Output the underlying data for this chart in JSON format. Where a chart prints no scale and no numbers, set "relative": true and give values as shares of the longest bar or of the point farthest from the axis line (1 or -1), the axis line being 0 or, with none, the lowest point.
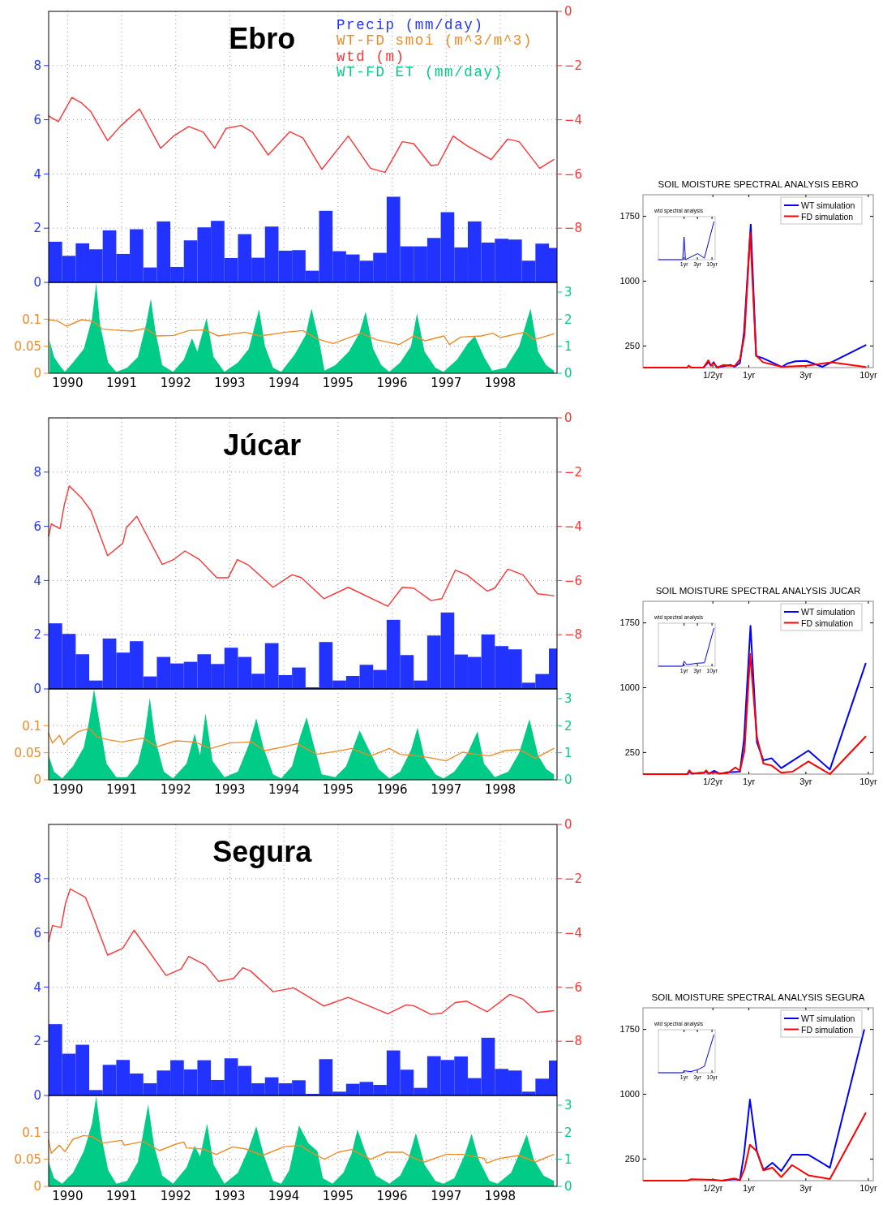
{
  "chart_data": [
    {
      "type": "bar",
      "title": "Ebro",
      "x": [
        1989.775,
        1990.025,
        1990.275,
        1990.525,
        1990.775,
        1991.025,
        1991.275,
        1991.525,
        1991.775,
        1992.025,
        1992.275,
        1992.525,
        1992.775,
        1993.025,
        1993.275,
        1993.525,
        1993.775,
        1994.025,
        1994.275,
        1994.525,
        1994.775,
        1995.025,
        1995.275,
        1995.525,
        1995.775,
        1996.025,
        1996.275,
        1996.525,
        1996.775,
        1997.025,
        1997.275,
        1997.525,
        1997.775,
        1998.025,
        1998.275,
        1998.525,
        1998.775,
        1999.025
      ],
      "series": [
        {
          "name": "Precip (mm/day)",
          "type": "bar",
          "color": "#2233ff",
          "values": [
            1.5,
            0.98,
            1.44,
            1.22,
            1.92,
            1.05,
            1.96,
            0.55,
            2.25,
            0.57,
            1.55,
            2.03,
            2.27,
            0.9,
            1.78,
            0.91,
            2.06,
            1.17,
            1.19,
            0.43,
            2.64,
            1.15,
            1.03,
            0.8,
            1.09,
            3.16,
            1.33,
            1.33,
            1.64,
            2.59,
            1.29,
            2.25,
            1.47,
            1.61,
            1.58,
            0.8,
            1.43,
            1.27
          ]
        },
        {
          "name": "wtd (m)",
          "type": "line",
          "axis": "y2",
          "color": "#ff3333",
          "x": [
            1989.65,
            1989.83,
            1990.08,
            1990.26,
            1990.43,
            1990.74,
            1990.99,
            1991.33,
            1991.72,
            1991.96,
            1992.24,
            1992.51,
            1992.72,
            1992.93,
            1993.21,
            1993.42,
            1993.71,
            1994.11,
            1994.35,
            1994.7,
            1995.19,
            1995.6,
            1995.87,
            1996.19,
            1996.4,
            1996.72,
            1996.85,
            1997.13,
            1997.38,
            1997.83,
            1998.14,
            1998.35,
            1998.73,
            1998.99
          ],
          "values": [
            -3.86,
            -4.07,
            -3.18,
            -3.38,
            -3.7,
            -4.77,
            -4.21,
            -3.6,
            -5.05,
            -4.6,
            -4.25,
            -4.46,
            -5.05,
            -4.32,
            -4.21,
            -4.46,
            -5.3,
            -4.44,
            -4.67,
            -5.83,
            -4.6,
            -5.79,
            -5.94,
            -4.81,
            -4.88,
            -5.69,
            -5.66,
            -4.6,
            -4.95,
            -5.47,
            -4.71,
            -4.81,
            -5.79,
            -5.47
          ]
        }
      ],
      "xlim": [
        1989.65,
        1999.05
      ],
      "xticks": [
        1990,
        1991,
        1992,
        1993,
        1994,
        1995,
        1996,
        1997,
        1998
      ],
      "ylim": [
        0,
        10
      ],
      "yticks": [
        0,
        2,
        4,
        6,
        8
      ],
      "y2lim": [
        -10,
        0
      ],
      "y2ticks": [
        0,
        -2,
        -4,
        -6,
        -8
      ],
      "grid": true,
      "legend": "top right",
      "tick_labels": "y"
    },
    {
      "type": "line",
      "series": [
        {
          "name": "WT-FD smoi (m^3/m^3)",
          "type": "line",
          "color": "#f08a24",
          "x": [
            1989.65,
            1989.81,
            1989.98,
            1990.26,
            1990.47,
            1990.64,
            1990.85,
            1991.19,
            1991.44,
            1991.65,
            1991.96,
            1992.24,
            1992.55,
            1992.79,
            1993.28,
            1993.56,
            1994.04,
            1994.35,
            1994.6,
            1994.91,
            1995.43,
            1995.71,
            1996.13,
            1996.4,
            1996.61,
            1996.96,
            1997.06,
            1997.27,
            1997.65,
            1997.86,
            1998.0,
            1998.45,
            1998.63,
            1998.99
          ],
          "values": [
            0.099,
            0.097,
            0.087,
            0.099,
            0.096,
            0.082,
            0.08,
            0.078,
            0.083,
            0.069,
            0.07,
            0.079,
            0.08,
            0.069,
            0.076,
            0.069,
            0.076,
            0.079,
            0.064,
            0.055,
            0.074,
            0.062,
            0.053,
            0.069,
            0.06,
            0.069,
            0.053,
            0.067,
            0.069,
            0.074,
            0.066,
            0.076,
            0.062,
            0.073
          ]
        },
        {
          "name": "WT-FD ET (mm/day)",
          "type": "area",
          "axis": "y2",
          "color": "#00cc88",
          "x": [
            1989.67,
            1989.75,
            1989.85,
            1989.95,
            1990.1,
            1990.3,
            1990.45,
            1990.53,
            1990.6,
            1990.75,
            1990.9,
            1991.1,
            1991.3,
            1991.45,
            1991.54,
            1991.62,
            1991.75,
            1991.95,
            1992.15,
            1992.3,
            1992.4,
            1992.57,
            1992.7,
            1992.9,
            1993.15,
            1993.35,
            1993.54,
            1993.65,
            1993.8,
            1993.95,
            1994.2,
            1994.4,
            1994.51,
            1994.65,
            1994.75,
            1994.95,
            1995.2,
            1995.4,
            1995.51,
            1995.65,
            1995.8,
            1995.95,
            1996.15,
            1996.35,
            1996.46,
            1996.6,
            1996.8,
            1996.95,
            1997.2,
            1997.4,
            1997.53,
            1997.7,
            1997.85,
            1998.1,
            1998.35,
            1998.56,
            1998.7,
            1998.85,
            1998.99
          ],
          "values": [
            1.2,
            0.6,
            0.3,
            0.05,
            0.4,
            0.9,
            2.0,
            3.34,
            1.8,
            0.4,
            0.05,
            0.2,
            0.6,
            1.8,
            2.75,
            1.6,
            0.3,
            0.05,
            0.5,
            1.3,
            0.8,
            2.04,
            0.6,
            0.05,
            0.4,
            0.9,
            2.37,
            1.0,
            0.2,
            0.05,
            0.7,
            1.4,
            2.39,
            1.2,
            0.1,
            0.3,
            0.8,
            1.5,
            2.28,
            0.9,
            0.3,
            0.05,
            0.4,
            1.0,
            2.21,
            0.8,
            0.2,
            0.05,
            0.5,
            1.1,
            1.37,
            0.6,
            0.1,
            0.2,
            1.0,
            2.39,
            0.8,
            0.3,
            0.1
          ]
        }
      ],
      "xlim": [
        1989.65,
        1999.05
      ],
      "xticks": [
        1990,
        1991,
        1992,
        1993,
        1994,
        1995,
        1996,
        1997,
        1998
      ],
      "ylim": [
        0,
        0.168
      ],
      "yticks": [
        0,
        0.05,
        0.1
      ],
      "y2lim": [
        0,
        3.36
      ],
      "y2ticks": [
        0,
        1,
        2,
        3
      ],
      "grid": true
    },
    {
      "type": "line",
      "title": "SOIL MOISTURE SPECTRAL ANALYSIS EBRO",
      "log": "x",
      "series": [
        {
          "name": "WT simulation",
          "color": "#0000ff",
          "x": [
            0.329,
            0.417,
            0.458,
            0.482,
            0.508,
            0.54,
            0.616,
            0.701,
            0.759,
            0.842,
            0.911,
            1.037,
            1.151,
            1.311,
            1.887,
            2.097,
            2.45,
            3.02,
            4.12,
            9.49
          ],
          "values": [
            0,
            0,
            62,
            22,
            62,
            0,
            16,
            31,
            9,
            53,
            406,
            1656,
            134,
            109,
            9,
            47,
            72,
            78,
            9,
            259
          ]
        },
        {
          "name": "FD simulation",
          "color": "#ff0000",
          "x": [
            0.132,
            0.305,
            0.313,
            0.329,
            0.417,
            0.458,
            0.482,
            0.508,
            0.54,
            0.616,
            0.701,
            0.759,
            0.842,
            0.92,
            1.026,
            1.151,
            1.311,
            1.887,
            3.02,
            4.95,
            9.49
          ],
          "values": [
            0,
            0,
            22,
            0,
            0,
            84,
            22,
            53,
            0,
            31,
            22,
            16,
            94,
            375,
            1562,
            141,
            62,
            9,
            22,
            62,
            6
          ]
        }
      ],
      "xlim": [
        0.13,
        11
      ],
      "xticks": [
        {
          "value": 0.5,
          "label": "1/2yr"
        },
        {
          "value": 1,
          "label": "1yr"
        },
        {
          "value": 3,
          "label": "3yr"
        },
        {
          "value": 10,
          "label": "10yr"
        }
      ],
      "ylim": [
        0,
        2000
      ],
      "yticks": [
        250,
        1000,
        1750
      ],
      "legend": "top right"
    },
    {
      "type": "line",
      "title": "wtd spectral analysis",
      "log": "x",
      "relative": true,
      "series": [
        {
          "color": "#0000ff",
          "x": [
            0.12,
            0.89,
            1,
            1.12,
            3.06,
            5.34,
            11.7
          ],
          "values": [
            0,
            0,
            0.6,
            0,
            0.16,
            0.04,
            1
          ]
        }
      ],
      "xlim": [
        0.12,
        13
      ],
      "xticks": [
        {
          "value": 1,
          "label": "1yr"
        },
        {
          "value": 3,
          "label": "3yr"
        },
        {
          "value": 10,
          "label": "10yr"
        }
      ],
      "tick_labels": "x"
    },
    {
      "type": "bar",
      "title": "Júcar",
      "x": [
        1989.775,
        1990.025,
        1990.275,
        1990.525,
        1990.775,
        1991.025,
        1991.275,
        1991.525,
        1991.775,
        1992.025,
        1992.275,
        1992.525,
        1992.775,
        1993.025,
        1993.275,
        1993.525,
        1993.775,
        1994.025,
        1994.275,
        1994.525,
        1994.775,
        1995.025,
        1995.275,
        1995.525,
        1995.775,
        1996.025,
        1996.275,
        1996.525,
        1996.775,
        1997.025,
        1997.275,
        1997.525,
        1997.775,
        1998.025,
        1998.275,
        1998.525,
        1998.775,
        1999.025
      ],
      "series": [
        {
          "type": "bar",
          "color": "#2233ff",
          "values": [
            2.42,
            2.03,
            1.28,
            0.31,
            1.86,
            1.34,
            1.76,
            0.46,
            1.18,
            0.94,
            1.0,
            1.28,
            0.92,
            1.52,
            1.18,
            0.56,
            1.69,
            0.51,
            0.79,
            0.06,
            1.73,
            0.31,
            0.48,
            0.89,
            0.7,
            2.55,
            1.25,
            0.31,
            1.97,
            2.82,
            1.27,
            1.18,
            2.01,
            1.58,
            1.46,
            0.23,
            0.55,
            1.49
          ]
        },
        {
          "type": "line",
          "axis": "y2",
          "color": "#ff3333",
          "x": [
            1989.65,
            1989.7,
            1989.86,
            1989.94,
            1990.03,
            1990.26,
            1990.43,
            1990.74,
            1991.02,
            1991.09,
            1991.28,
            1991.75,
            1991.96,
            1992.17,
            1992.44,
            1992.76,
            1992.97,
            1993.14,
            1993.35,
            1993.8,
            1994.15,
            1994.32,
            1994.74,
            1995.19,
            1995.92,
            1996.19,
            1996.4,
            1996.72,
            1996.92,
            1997.17,
            1997.38,
            1997.76,
            1997.9,
            1998.14,
            1998.42,
            1998.69,
            1998.99
          ],
          "values": [
            -4.35,
            -3.91,
            -4.09,
            -3.21,
            -2.51,
            -2.96,
            -3.42,
            -5.08,
            -4.63,
            -4.04,
            -3.63,
            -5.41,
            -5.23,
            -4.91,
            -5.23,
            -5.9,
            -5.9,
            -5.23,
            -5.44,
            -6.25,
            -5.79,
            -5.89,
            -6.67,
            -6.25,
            -6.95,
            -6.25,
            -6.28,
            -6.74,
            -6.67,
            -5.62,
            -5.79,
            -6.39,
            -6.28,
            -5.58,
            -5.79,
            -6.49,
            -6.56
          ]
        }
      ],
      "xlim": [
        1989.65,
        1999.05
      ],
      "xticks": [
        1990,
        1991,
        1992,
        1993,
        1994,
        1995,
        1996,
        1997,
        1998
      ],
      "ylim": [
        0,
        10
      ],
      "yticks": [
        0,
        2,
        4,
        6,
        8
      ],
      "y2lim": [
        -10,
        0
      ],
      "y2ticks": [
        0,
        -2,
        -4,
        -6,
        -8
      ],
      "grid": true,
      "tick_labels": "y"
    },
    {
      "type": "line",
      "series": [
        {
          "type": "line",
          "color": "#f08a24",
          "x": [
            1989.65,
            1989.72,
            1989.85,
            1989.93,
            1990.0,
            1990.2,
            1990.4,
            1990.55,
            1990.75,
            1991.0,
            1991.4,
            1991.65,
            1992.0,
            1992.35,
            1992.65,
            1993.0,
            1993.4,
            1993.65,
            1994.0,
            1994.25,
            1994.6,
            1995.0,
            1995.25,
            1995.6,
            1995.95,
            1996.15,
            1996.5,
            1996.75,
            1997.0,
            1997.3,
            1997.55,
            1997.8,
            1998.1,
            1998.35,
            1998.65,
            1998.99
          ],
          "values": [
            0.086,
            0.068,
            0.082,
            0.065,
            0.074,
            0.089,
            0.095,
            0.079,
            0.074,
            0.07,
            0.077,
            0.061,
            0.072,
            0.07,
            0.058,
            0.068,
            0.07,
            0.054,
            0.061,
            0.067,
            0.047,
            0.053,
            0.058,
            0.044,
            0.058,
            0.047,
            0.044,
            0.04,
            0.035,
            0.051,
            0.047,
            0.044,
            0.054,
            0.056,
            0.04,
            0.058
          ]
        },
        {
          "type": "area",
          "axis": "y2",
          "color": "#00cc88",
          "x": [
            1989.65,
            1989.75,
            1989.9,
            1990.1,
            1990.3,
            1990.4,
            1990.49,
            1990.6,
            1990.72,
            1990.9,
            1991.1,
            1991.3,
            1991.42,
            1991.52,
            1991.62,
            1991.78,
            1991.95,
            1992.2,
            1992.35,
            1992.45,
            1992.55,
            1992.68,
            1992.9,
            1993.15,
            1993.35,
            1993.49,
            1993.62,
            1993.8,
            1993.95,
            1994.15,
            1994.3,
            1994.42,
            1994.55,
            1994.7,
            1994.95,
            1995.15,
            1995.3,
            1995.4,
            1995.55,
            1995.75,
            1995.95,
            1996.15,
            1996.35,
            1996.47,
            1996.6,
            1996.8,
            1996.95,
            1997.15,
            1997.4,
            1997.58,
            1997.7,
            1997.9,
            1998.15,
            1998.35,
            1998.54,
            1998.7,
            1998.85,
            1998.99
          ],
          "values": [
            0.9,
            0.3,
            0.05,
            0.5,
            1.2,
            2.2,
            3.35,
            2.0,
            0.6,
            0.1,
            0.1,
            0.6,
            1.6,
            3.03,
            1.5,
            0.3,
            0.05,
            0.6,
            1.7,
            0.9,
            2.46,
            0.7,
            0.1,
            0.3,
            1.3,
            2.27,
            1.2,
            0.2,
            0.05,
            0.5,
            1.6,
            2.31,
            1.3,
            0.2,
            0.1,
            0.5,
            1.3,
            1.82,
            1.2,
            0.4,
            0.05,
            0.3,
            1.1,
            1.93,
            0.8,
            0.2,
            0.05,
            0.3,
            1.0,
            1.79,
            0.6,
            0.1,
            0.3,
            1.0,
            2.24,
            0.9,
            0.4,
            0.2
          ]
        }
      ],
      "xlim": [
        1989.65,
        1999.05
      ],
      "xticks": [
        1990,
        1991,
        1992,
        1993,
        1994,
        1995,
        1996,
        1997,
        1998
      ],
      "ylim": [
        0,
        0.168
      ],
      "yticks": [
        0,
        0.05,
        0.1
      ],
      "y2lim": [
        0,
        3.36
      ],
      "y2ticks": [
        0,
        1,
        2,
        3
      ],
      "grid": true
    },
    {
      "type": "line",
      "title": "SOIL MOISTURE SPECTRAL ANALYSIS JUCAR",
      "log": "x",
      "series": [
        {
          "name": "WT simulation",
          "color": "#0000ff",
          "x": [
            0.132,
            0.305,
            0.318,
            0.335,
            0.421,
            0.439,
            0.462,
            0.513,
            0.569,
            0.666,
            0.842,
            0.911,
            1.032,
            1.169,
            1.325,
            1.549,
            1.867,
            2.07,
            3.15,
            4.77,
            9.49
          ],
          "values": [
            0,
            0,
            28,
            6,
            16,
            28,
            6,
            38,
            6,
            22,
            28,
            397,
            1716,
            366,
            159,
            184,
            69,
            109,
            272,
            53,
            1278
          ]
        },
        {
          "name": "FD simulation",
          "color": "#ff0000",
          "x": [
            0.132,
            0.305,
            0.318,
            0.335,
            0.421,
            0.439,
            0.462,
            0.513,
            0.569,
            0.666,
            0.771,
            0.842,
            0.92,
            1.026,
            1.169,
            1.325,
            1.549,
            1.867,
            2.32,
            3.15,
            4.77,
            9.49
          ],
          "values": [
            0,
            0,
            44,
            6,
            16,
            44,
            6,
            22,
            6,
            12,
            78,
            38,
            272,
            1391,
            422,
            122,
            100,
            16,
            28,
            147,
            0,
            434
          ]
        }
      ],
      "xlim": [
        0.13,
        11
      ],
      "xticks": [
        {
          "value": 0.5,
          "label": "1/2yr"
        },
        {
          "value": 1,
          "label": "1yr"
        },
        {
          "value": 3,
          "label": "3yr"
        },
        {
          "value": 10,
          "label": "10yr"
        }
      ],
      "ylim": [
        0,
        2000
      ],
      "yticks": [
        250,
        1000,
        1750
      ],
      "legend": "top right"
    },
    {
      "type": "line",
      "title": "wtd spectral analysis",
      "log": "x",
      "relative": true,
      "series": [
        {
          "color": "#0000ff",
          "x": [
            0.12,
            0.89,
            1,
            1.25,
            3.06,
            5.34,
            11.7
          ],
          "values": [
            0,
            0,
            0.13,
            0.04,
            0.08,
            0.09,
            1
          ]
        }
      ],
      "xlim": [
        0.12,
        13
      ],
      "xticks": [
        {
          "value": 1,
          "label": "1yr"
        },
        {
          "value": 3,
          "label": "3yr"
        },
        {
          "value": 10,
          "label": "10yr"
        }
      ],
      "tick_labels": "x"
    },
    {
      "type": "bar",
      "title": "Segura",
      "x": [
        1989.775,
        1990.025,
        1990.275,
        1990.525,
        1990.775,
        1991.025,
        1991.275,
        1991.525,
        1991.775,
        1992.025,
        1992.275,
        1992.525,
        1992.775,
        1993.025,
        1993.275,
        1993.525,
        1993.775,
        1994.025,
        1994.275,
        1994.525,
        1994.775,
        1995.025,
        1995.275,
        1995.525,
        1995.775,
        1996.025,
        1996.275,
        1996.525,
        1996.775,
        1997.025,
        1997.275,
        1997.525,
        1997.775,
        1998.025,
        1998.275,
        1998.525,
        1998.775,
        1999.025
      ],
      "series": [
        {
          "type": "bar",
          "color": "#2233ff",
          "values": [
            2.63,
            1.54,
            1.87,
            0.2,
            1.13,
            1.31,
            0.81,
            0.45,
            0.92,
            1.3,
            0.96,
            1.3,
            0.57,
            1.37,
            1.09,
            0.45,
            0.67,
            0.45,
            0.56,
            0.06,
            1.34,
            0.14,
            0.43,
            0.5,
            0.39,
            1.66,
            0.95,
            0.28,
            1.45,
            1.31,
            1.44,
            0.64,
            2.13,
            0.98,
            0.92,
            0.14,
            0.62,
            1.29
          ]
        },
        {
          "type": "line",
          "axis": "y2",
          "color": "#ff3333",
          "x": [
            1989.65,
            1989.72,
            1989.88,
            1989.96,
            1990.05,
            1990.33,
            1990.43,
            1990.74,
            1991.02,
            1991.23,
            1991.82,
            1992.1,
            1992.24,
            1992.55,
            1992.79,
            1993.07,
            1993.24,
            1993.38,
            1993.8,
            1994.18,
            1994.74,
            1995.19,
            1995.92,
            1996.26,
            1996.4,
            1996.72,
            1996.92,
            1997.17,
            1997.38,
            1997.76,
            1998.18,
            1998.42,
            1998.69,
            1998.99
          ],
          "values": [
            -4.32,
            -3.73,
            -3.8,
            -2.92,
            -2.38,
            -2.69,
            -3.18,
            -4.82,
            -4.57,
            -3.9,
            -5.57,
            -5.33,
            -4.87,
            -5.19,
            -5.79,
            -5.68,
            -5.29,
            -5.4,
            -6.17,
            -6.03,
            -6.7,
            -6.38,
            -6.99,
            -6.66,
            -6.69,
            -7.01,
            -6.96,
            -6.57,
            -6.52,
            -6.91,
            -6.27,
            -6.45,
            -6.94,
            -6.87
          ]
        }
      ],
      "xlim": [
        1989.65,
        1999.05
      ],
      "xticks": [
        1990,
        1991,
        1992,
        1993,
        1994,
        1995,
        1996,
        1997,
        1998
      ],
      "ylim": [
        0,
        10
      ],
      "yticks": [
        0,
        2,
        4,
        6,
        8
      ],
      "y2lim": [
        -10,
        0
      ],
      "y2ticks": [
        0,
        -2,
        -4,
        -6,
        -8
      ],
      "grid": true,
      "tick_labels": "y"
    },
    {
      "type": "line",
      "series": [
        {
          "type": "line",
          "color": "#f08a24",
          "x": [
            1989.65,
            1989.7,
            1989.85,
            1989.95,
            1990.1,
            1990.3,
            1990.45,
            1990.65,
            1991.0,
            1991.05,
            1991.4,
            1991.7,
            1992.0,
            1992.15,
            1992.2,
            1992.5,
            1992.75,
            1993.05,
            1993.3,
            1993.6,
            1994.0,
            1994.3,
            1994.5,
            1994.75,
            1995.0,
            1995.25,
            1995.6,
            1995.9,
            1996.2,
            1996.4,
            1996.6,
            1997.0,
            1997.3,
            1997.7,
            1997.75,
            1998.0,
            1998.35,
            1998.65,
            1998.99
          ],
          "values": [
            0.085,
            0.061,
            0.076,
            0.064,
            0.087,
            0.094,
            0.092,
            0.08,
            0.085,
            0.076,
            0.083,
            0.066,
            0.078,
            0.082,
            0.071,
            0.069,
            0.059,
            0.073,
            0.069,
            0.057,
            0.073,
            0.076,
            0.063,
            0.05,
            0.063,
            0.068,
            0.05,
            0.063,
            0.063,
            0.052,
            0.045,
            0.059,
            0.059,
            0.052,
            0.043,
            0.052,
            0.057,
            0.045,
            0.059
          ]
        },
        {
          "type": "area",
          "axis": "y2",
          "color": "#00cc88",
          "x": [
            1989.65,
            1989.75,
            1989.9,
            1990.1,
            1990.3,
            1990.45,
            1990.53,
            1990.62,
            1990.75,
            1990.9,
            1991.1,
            1991.3,
            1991.4,
            1991.49,
            1991.6,
            1991.75,
            1991.95,
            1992.2,
            1992.35,
            1992.45,
            1992.58,
            1992.7,
            1992.9,
            1993.15,
            1993.35,
            1993.49,
            1993.62,
            1993.8,
            1993.95,
            1994.1,
            1994.28,
            1994.45,
            1994.62,
            1994.72,
            1994.9,
            1995.1,
            1995.25,
            1995.36,
            1995.5,
            1995.7,
            1995.95,
            1996.15,
            1996.3,
            1996.44,
            1996.6,
            1996.8,
            1996.95,
            1997.15,
            1997.35,
            1997.47,
            1997.6,
            1997.8,
            1997.95,
            1998.2,
            1998.35,
            1998.49,
            1998.62,
            1998.8,
            1998.99
          ],
          "values": [
            0.9,
            0.3,
            0.1,
            0.5,
            1.3,
            2.3,
            3.33,
            1.9,
            0.6,
            0.1,
            0.2,
            0.9,
            2.0,
            3.03,
            1.5,
            0.4,
            0.1,
            0.7,
            1.5,
            1.1,
            2.32,
            0.8,
            0.1,
            0.5,
            1.4,
            2.22,
            1.2,
            0.2,
            0.1,
            0.6,
            2.25,
            1.6,
            1.3,
            0.3,
            0.1,
            0.5,
            1.2,
            2.11,
            1.3,
            0.4,
            0.1,
            0.4,
            1.0,
            1.97,
            0.8,
            0.2,
            0.1,
            0.3,
            1.2,
            1.94,
            1.0,
            0.2,
            0.1,
            0.5,
            1.2,
            1.92,
            1.0,
            0.4,
            0.2
          ]
        }
      ],
      "xlim": [
        1989.65,
        1999.05
      ],
      "xticks": [
        1990,
        1991,
        1992,
        1993,
        1994,
        1995,
        1996,
        1997,
        1998
      ],
      "ylim": [
        0,
        0.168
      ],
      "yticks": [
        0,
        0.05,
        0.1
      ],
      "y2lim": [
        0,
        3.36
      ],
      "y2ticks": [
        0,
        1,
        2,
        3
      ],
      "grid": true
    },
    {
      "type": "line",
      "title": "SOIL MOISTURE SPECTRAL ANALYSIS SEGURA",
      "log": "x",
      "series": [
        {
          "name": "WT simulation",
          "color": "#0000ff",
          "x": [
            0.6,
            0.759,
            0.842,
            0.911,
            1.021,
            1.169,
            1.325,
            1.574,
            1.867,
            2.3,
            3.15,
            4.77,
            9.23
          ],
          "values": [
            0,
            19,
            6,
            306,
            938,
            331,
            125,
            206,
            112,
            300,
            300,
            150,
            1744
          ]
        },
        {
          "name": "FD simulation",
          "color": "#ff0000",
          "x": [
            0.132,
            0.305,
            0.329,
            0.513,
            0.6,
            0.759,
            0.842,
            0.92,
            1.021,
            1.169,
            1.325,
            1.574,
            1.867,
            2.3,
            3.15,
            4.77,
            9.49
          ],
          "values": [
            0,
            0,
            16,
            9,
            0,
            25,
            6,
            134,
            416,
            338,
            119,
            150,
            41,
            181,
            62,
            19,
            781
          ]
        }
      ],
      "xlim": [
        0.13,
        11
      ],
      "xticks": [
        {
          "value": 0.5,
          "label": "1/2yr"
        },
        {
          "value": 1,
          "label": "1yr"
        },
        {
          "value": 3,
          "label": "3yr"
        },
        {
          "value": 10,
          "label": "10yr"
        }
      ],
      "ylim": [
        0,
        2000
      ],
      "yticks": [
        250,
        1000,
        1750
      ],
      "legend": "top right"
    },
    {
      "type": "line",
      "title": "wtd spectral analysis",
      "log": "x",
      "relative": true,
      "series": [
        {
          "color": "#0000ff",
          "x": [
            0.12,
            0.89,
            1,
            1.75,
            3.06,
            5.34,
            11.7
          ],
          "values": [
            0,
            0,
            0.05,
            0.03,
            0.08,
            0.17,
            1
          ]
        }
      ],
      "xlim": [
        0.12,
        13
      ],
      "xticks": [
        {
          "value": 1,
          "label": "1yr"
        },
        {
          "value": 3,
          "label": "3yr"
        },
        {
          "value": 10,
          "label": "10yr"
        }
      ],
      "tick_labels": "x"
    }
  ]
}
